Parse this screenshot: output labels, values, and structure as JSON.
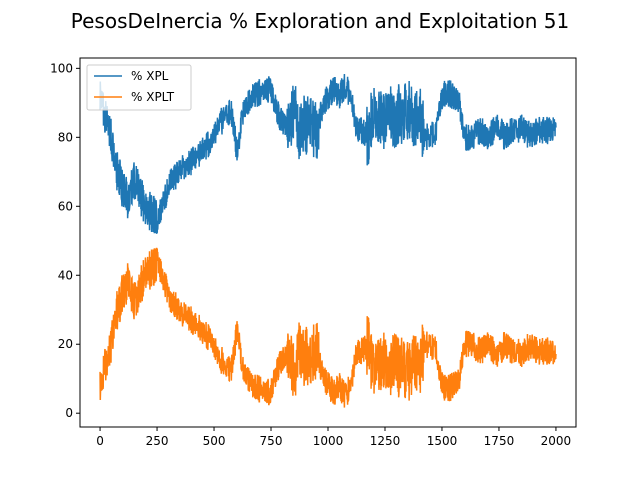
{
  "chart_data": {
    "type": "line",
    "title": "PesosDeInercia % Exploration and Exploitation 51",
    "xlabel": "",
    "ylabel": "",
    "xlim": [
      -88,
      2088
    ],
    "ylim": [
      -4,
      103
    ],
    "x_ticks": [
      0,
      250,
      500,
      750,
      1000,
      1250,
      1500,
      1750,
      2000
    ],
    "y_ticks": [
      0,
      20,
      40,
      60,
      80,
      100
    ],
    "legend_position": "top-left",
    "grid": false,
    "series": [
      {
        "name": "% XPL",
        "color": "#1f77b4",
        "x": [
          0,
          25,
          50,
          75,
          100,
          125,
          150,
          175,
          200,
          225,
          250,
          275,
          300,
          325,
          350,
          375,
          400,
          425,
          450,
          475,
          500,
          525,
          550,
          575,
          600,
          625,
          650,
          675,
          700,
          725,
          750,
          775,
          800,
          825,
          850,
          875,
          900,
          925,
          950,
          975,
          1000,
          1025,
          1050,
          1075,
          1100,
          1125,
          1150,
          1175,
          1200,
          1225,
          1250,
          1275,
          1300,
          1325,
          1350,
          1375,
          1400,
          1425,
          1450,
          1475,
          1500,
          1525,
          1550,
          1575,
          1600,
          1625,
          1650,
          1675,
          1700,
          1725,
          1750,
          1775,
          1800,
          1825,
          1850,
          1875,
          1900,
          1925,
          1950,
          1975,
          2000
        ],
        "values": [
          94,
          86,
          80,
          70,
          65,
          62,
          68,
          63,
          60,
          58,
          56,
          60,
          66,
          68,
          70,
          72,
          73,
          74,
          76,
          78,
          80,
          84,
          86,
          88,
          76,
          86,
          90,
          92,
          93,
          94,
          94,
          88,
          84,
          82,
          88,
          82,
          84,
          83,
          82,
          88,
          92,
          94,
          92,
          95,
          92,
          82,
          82,
          80,
          88,
          86,
          85,
          86,
          86,
          87,
          88,
          86,
          87,
          80,
          80,
          82,
          92,
          93,
          92,
          91,
          80,
          80,
          81,
          82,
          80,
          82,
          83,
          80,
          82,
          82,
          83,
          81,
          81,
          82,
          82,
          82,
          82
        ]
      },
      {
        "name": "% XPLT",
        "color": "#ff7f0e",
        "x": [
          0,
          25,
          50,
          75,
          100,
          125,
          150,
          175,
          200,
          225,
          250,
          275,
          300,
          325,
          350,
          375,
          400,
          425,
          450,
          475,
          500,
          525,
          550,
          575,
          600,
          625,
          650,
          675,
          700,
          725,
          750,
          775,
          800,
          825,
          850,
          875,
          900,
          925,
          950,
          975,
          1000,
          1025,
          1050,
          1075,
          1100,
          1125,
          1150,
          1175,
          1200,
          1225,
          1250,
          1275,
          1300,
          1325,
          1350,
          1375,
          1400,
          1425,
          1450,
          1475,
          1500,
          1525,
          1550,
          1575,
          1600,
          1625,
          1650,
          1675,
          1700,
          1725,
          1750,
          1775,
          1800,
          1825,
          1850,
          1875,
          1900,
          1925,
          1950,
          1975,
          2000
        ],
        "values": [
          6,
          14,
          20,
          30,
          35,
          38,
          32,
          37,
          40,
          42,
          44,
          40,
          34,
          32,
          30,
          28,
          27,
          26,
          24,
          22,
          20,
          16,
          14,
          12,
          24,
          14,
          10,
          8,
          7,
          6,
          6,
          12,
          16,
          18,
          12,
          18,
          16,
          17,
          18,
          12,
          8,
          6,
          8,
          5,
          8,
          18,
          18,
          20,
          12,
          14,
          15,
          14,
          14,
          13,
          12,
          14,
          13,
          20,
          20,
          18,
          8,
          7,
          8,
          9,
          20,
          20,
          19,
          18,
          20,
          18,
          17,
          20,
          18,
          18,
          17,
          19,
          19,
          18,
          18,
          18,
          18
        ]
      }
    ]
  }
}
